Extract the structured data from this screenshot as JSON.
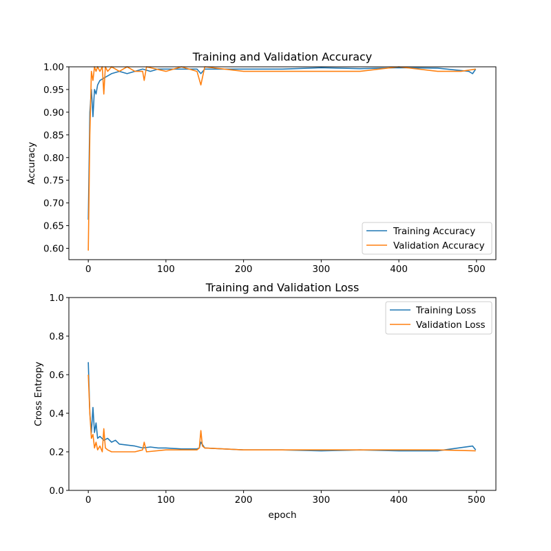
{
  "chart_data": [
    {
      "type": "line",
      "title": "Training and Validation Accuracy",
      "xlabel": "",
      "ylabel": "Accuracy",
      "xlim": [
        -25,
        525
      ],
      "ylim": [
        0.575,
        1.0
      ],
      "xticks": [
        0,
        100,
        200,
        300,
        400,
        500
      ],
      "yticks": [
        "0.60",
        "0.65",
        "0.70",
        "0.75",
        "0.80",
        "0.85",
        "0.90",
        "0.95",
        "1.00"
      ],
      "legend_position": "lower-right",
      "series": [
        {
          "name": "Training Accuracy",
          "color": "#1f77b4",
          "x": [
            0,
            2,
            4,
            6,
            8,
            10,
            12,
            15,
            20,
            25,
            30,
            40,
            50,
            60,
            70,
            80,
            90,
            100,
            120,
            140,
            145,
            150,
            200,
            250,
            300,
            350,
            400,
            450,
            490,
            495,
            499
          ],
          "y": [
            0.663,
            0.9,
            0.95,
            0.89,
            0.95,
            0.94,
            0.96,
            0.97,
            0.975,
            0.98,
            0.985,
            0.99,
            0.985,
            0.99,
            0.995,
            0.99,
            0.995,
            0.995,
            0.995,
            0.995,
            0.985,
            0.995,
            0.995,
            0.995,
            0.998,
            0.996,
            0.998,
            0.997,
            0.99,
            0.985,
            0.995
          ]
        },
        {
          "name": "Validation Accuracy",
          "color": "#ff7f0e",
          "x": [
            0,
            2,
            4,
            6,
            8,
            10,
            12,
            15,
            18,
            20,
            22,
            25,
            30,
            40,
            50,
            60,
            70,
            72,
            75,
            100,
            120,
            140,
            145,
            150,
            200,
            250,
            300,
            350,
            400,
            450,
            480,
            499
          ],
          "y": [
            0.595,
            0.85,
            0.99,
            0.97,
            1.0,
            0.99,
            1.0,
            0.99,
            1.0,
            0.94,
            1.0,
            0.99,
            1.0,
            0.99,
            1.0,
            0.99,
            0.99,
            0.97,
            1.0,
            0.99,
            1.0,
            0.99,
            0.96,
            1.0,
            0.99,
            0.99,
            0.99,
            0.99,
            1.0,
            0.99,
            0.99,
            0.995
          ]
        }
      ]
    },
    {
      "type": "line",
      "title": "Training and Validation Loss",
      "xlabel": "epoch",
      "ylabel": "Cross Entropy",
      "xlim": [
        -25,
        525
      ],
      "ylim": [
        0.0,
        1.0
      ],
      "xticks": [
        0,
        100,
        200,
        300,
        400,
        500
      ],
      "yticks": [
        "0.0",
        "0.2",
        "0.4",
        "0.6",
        "0.8",
        "1.0"
      ],
      "legend_position": "upper-right",
      "series": [
        {
          "name": "Training Loss",
          "color": "#1f77b4",
          "x": [
            0,
            2,
            4,
            6,
            8,
            10,
            12,
            15,
            20,
            25,
            30,
            35,
            40,
            50,
            60,
            70,
            80,
            90,
            100,
            120,
            140,
            143,
            145,
            150,
            200,
            250,
            300,
            350,
            400,
            450,
            495,
            499
          ],
          "y": [
            0.665,
            0.4,
            0.3,
            0.43,
            0.3,
            0.35,
            0.27,
            0.28,
            0.26,
            0.27,
            0.25,
            0.26,
            0.24,
            0.235,
            0.23,
            0.22,
            0.225,
            0.22,
            0.22,
            0.215,
            0.215,
            0.22,
            0.25,
            0.22,
            0.21,
            0.21,
            0.205,
            0.21,
            0.205,
            0.205,
            0.23,
            0.21
          ]
        },
        {
          "name": "Validation Loss",
          "color": "#ff7f0e",
          "x": [
            0,
            2,
            4,
            6,
            8,
            10,
            12,
            15,
            18,
            20,
            22,
            25,
            30,
            40,
            50,
            60,
            70,
            72,
            75,
            100,
            120,
            140,
            143,
            145,
            147,
            150,
            200,
            250,
            300,
            350,
            400,
            450,
            499
          ],
          "y": [
            0.6,
            0.4,
            0.27,
            0.29,
            0.22,
            0.25,
            0.21,
            0.23,
            0.2,
            0.32,
            0.22,
            0.21,
            0.2,
            0.2,
            0.2,
            0.2,
            0.21,
            0.25,
            0.2,
            0.21,
            0.21,
            0.21,
            0.22,
            0.31,
            0.23,
            0.22,
            0.21,
            0.21,
            0.21,
            0.21,
            0.21,
            0.21,
            0.205
          ]
        }
      ]
    }
  ]
}
